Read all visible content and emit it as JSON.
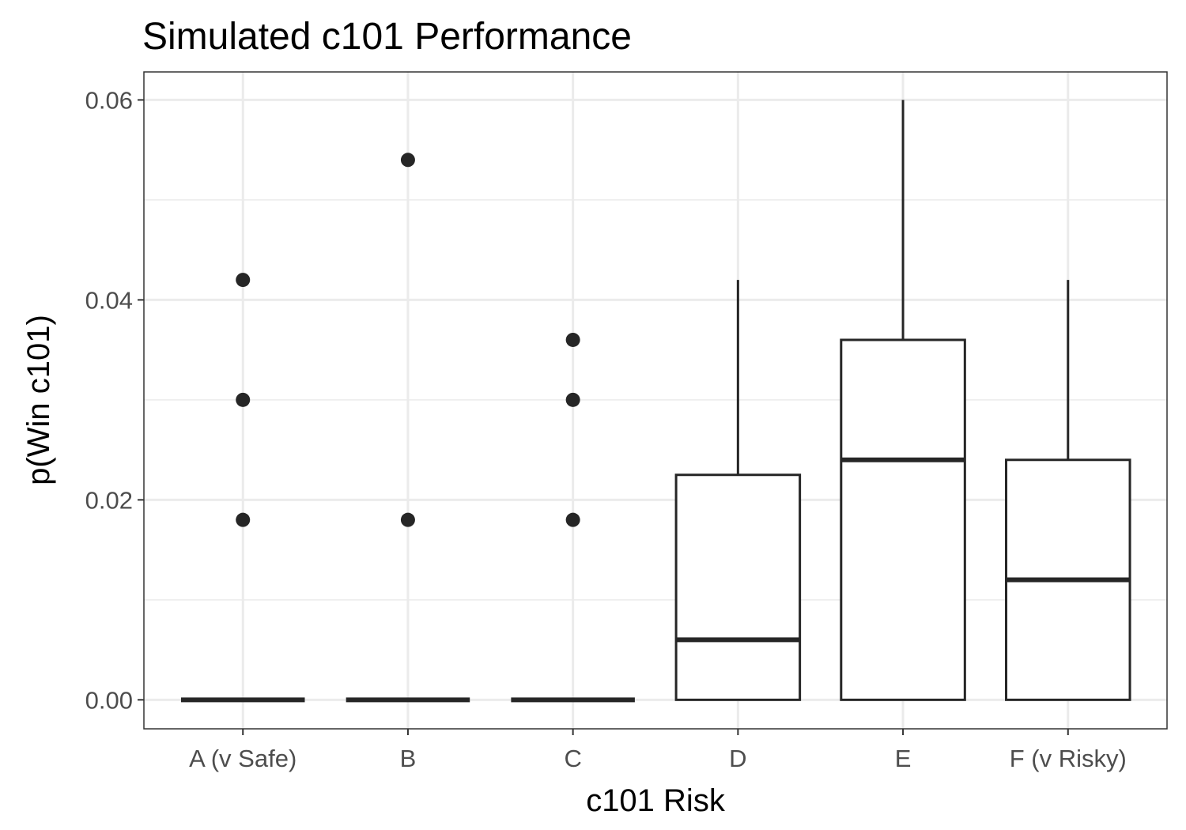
{
  "chart_data": {
    "type": "boxplot",
    "title": "Simulated c101 Performance",
    "xlabel": "c101 Risk",
    "ylabel": "p(Win c101)",
    "categories": [
      "A (v Safe)",
      "B",
      "C",
      "D",
      "E",
      "F (v Risky)"
    ],
    "ylim": [
      -0.0029,
      0.0628
    ],
    "yticks": [
      0.0,
      0.02,
      0.04,
      0.06
    ],
    "ytick_labels": [
      "0.00",
      "0.02",
      "0.04",
      "0.06"
    ],
    "grid": true,
    "boxes": [
      {
        "category": "A (v Safe)",
        "whisker_low": 0.0,
        "q1": 0.0,
        "median": 0.0,
        "q3": 0.0,
        "whisker_high": 0.0,
        "outliers": [
          0.018,
          0.03,
          0.042
        ]
      },
      {
        "category": "B",
        "whisker_low": 0.0,
        "q1": 0.0,
        "median": 0.0,
        "q3": 0.0,
        "whisker_high": 0.0,
        "outliers": [
          0.018,
          0.054
        ]
      },
      {
        "category": "C",
        "whisker_low": 0.0,
        "q1": 0.0,
        "median": 0.0,
        "q3": 0.0,
        "whisker_high": 0.0,
        "outliers": [
          0.018,
          0.03,
          0.036
        ]
      },
      {
        "category": "D",
        "whisker_low": 0.0,
        "q1": 0.0,
        "median": 0.006,
        "q3": 0.0225,
        "whisker_high": 0.042,
        "outliers": []
      },
      {
        "category": "E",
        "whisker_low": 0.0,
        "q1": 0.0,
        "median": 0.024,
        "q3": 0.036,
        "whisker_high": 0.06,
        "outliers": []
      },
      {
        "category": "F (v Risky)",
        "whisker_low": 0.0,
        "q1": 0.0,
        "median": 0.012,
        "q3": 0.024,
        "whisker_high": 0.042,
        "outliers": []
      }
    ],
    "colors": {
      "box_stroke": "#262626",
      "box_fill": "#ffffff",
      "grid_major": "#ebebeb",
      "panel_border": "#333333",
      "tick_text": "#4d4d4d"
    }
  }
}
